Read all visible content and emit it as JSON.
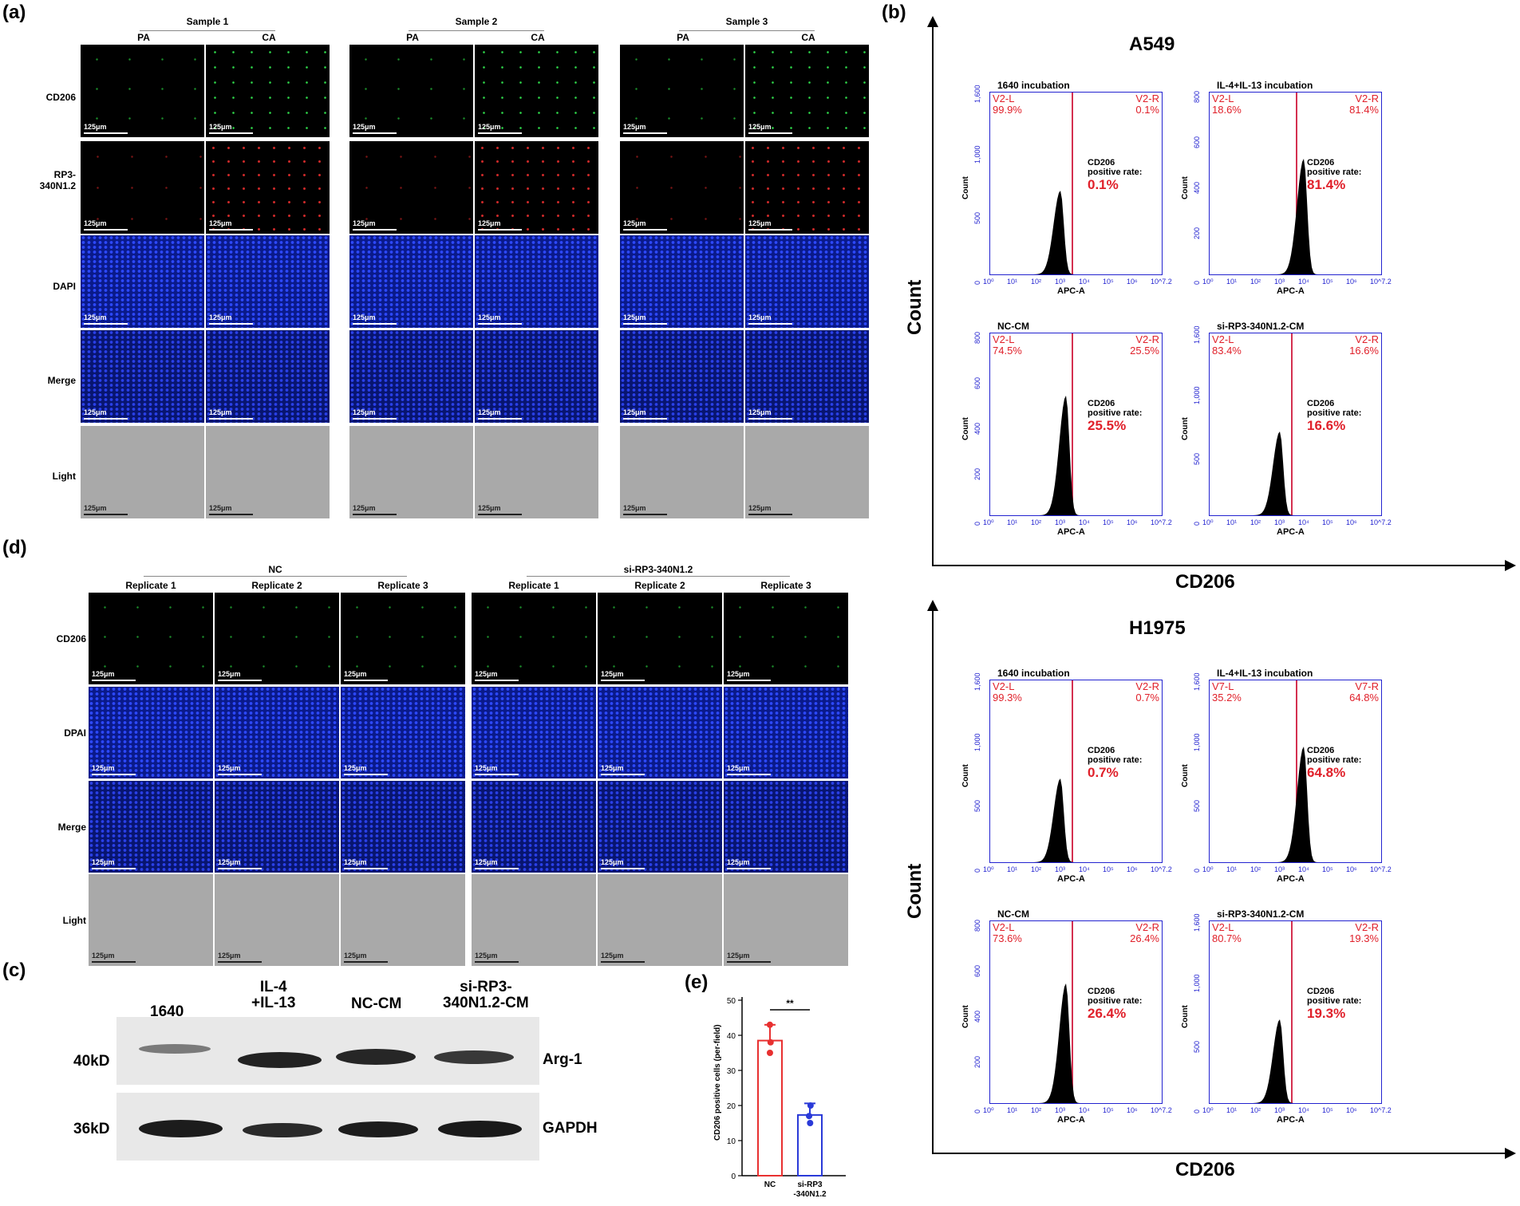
{
  "panels": {
    "a": "(a)",
    "b": "(b)",
    "c": "(c)",
    "d": "(d)",
    "e": "(e)"
  },
  "panel_a": {
    "samples": [
      "Sample 1",
      "Sample 2",
      "Sample 3"
    ],
    "cols": [
      "PA",
      "CA"
    ],
    "rows": [
      "CD206",
      "RP3-\n340N1.2",
      "DAPI",
      "Merge",
      "Light"
    ],
    "scale": "125μm"
  },
  "panel_d": {
    "groups": [
      "NC",
      "si-RP3-340N1.2"
    ],
    "replicates": [
      "Replicate 1",
      "Replicate 2",
      "Replicate 3"
    ],
    "rows": [
      "CD206",
      "DPAI",
      "Merge",
      "Light"
    ],
    "scale": "125μm"
  },
  "panel_b": {
    "axis_y": "Count",
    "axis_x": "CD206",
    "blocks": [
      {
        "cell": "A549",
        "plots": [
          {
            "title": "1640 incubation",
            "l": "V2-L",
            "lp": "99.9%",
            "r": "V2-R",
            "rp": "0.1%",
            "rate": "0.1%",
            "yt": [
              "1,600",
              "1,000",
              "500",
              "0"
            ]
          },
          {
            "title": "IL-4+IL-13 incubation",
            "l": "V2-L",
            "lp": "18.6%",
            "r": "V2-R",
            "rp": "81.4%",
            "rate": "81.4%",
            "yt": [
              "800",
              "600",
              "400",
              "200",
              "0"
            ]
          },
          {
            "title": "NC-CM",
            "l": "V2-L",
            "lp": "74.5%",
            "r": "V2-R",
            "rp": "25.5%",
            "rate": "25.5%",
            "yt": [
              "800",
              "600",
              "400",
              "200",
              "0"
            ]
          },
          {
            "title": "si-RP3-340N1.2-CM",
            "l": "V2-L",
            "lp": "83.4%",
            "r": "V2-R",
            "rp": "16.6%",
            "rate": "16.6%",
            "yt": [
              "1,600",
              "1,000",
              "500",
              "0"
            ]
          }
        ]
      },
      {
        "cell": "H1975",
        "plots": [
          {
            "title": "1640 incubation",
            "l": "V2-L",
            "lp": "99.3%",
            "r": "V2-R",
            "rp": "0.7%",
            "rate": "0.7%",
            "yt": [
              "1,600",
              "1,000",
              "500",
              "0"
            ]
          },
          {
            "title": "IL-4+IL-13 incubation",
            "l": "V7-L",
            "lp": "35.2%",
            "r": "V7-R",
            "rp": "64.8%",
            "rate": "64.8%",
            "yt": [
              "1,600",
              "1,000",
              "500",
              "0"
            ]
          },
          {
            "title": "NC-CM",
            "l": "V2-L",
            "lp": "73.6%",
            "r": "V2-R",
            "rp": "26.4%",
            "rate": "26.4%",
            "yt": [
              "800",
              "600",
              "400",
              "200",
              "0"
            ]
          },
          {
            "title": "si-RP3-340N1.2-CM",
            "l": "V2-L",
            "lp": "80.7%",
            "r": "V2-R",
            "rp": "19.3%",
            "rate": "19.3%",
            "yt": [
              "1,600",
              "1,000",
              "500",
              "0"
            ]
          }
        ]
      }
    ],
    "cd206_label": "CD206",
    "positive_rate": "positive rate:",
    "count_label": "Count",
    "apc_label": "APC-A",
    "x_ticks": [
      "10⁰",
      "10¹",
      "10²",
      "10³",
      "10⁴",
      "10⁵",
      "10⁶",
      "10^7.2"
    ]
  },
  "panel_c": {
    "lanes": [
      "1640",
      "IL-4\n+IL-13",
      "NC-CM",
      "si-RP3-\n340N1.2-CM"
    ],
    "markers": [
      "40kD",
      "36kD"
    ],
    "proteins": [
      "Arg-1",
      "GAPDH"
    ]
  },
  "chart_data": {
    "type": "bar",
    "title": "",
    "categories": [
      "NC",
      "si-RP3\n-340N1.2"
    ],
    "values": [
      38.5,
      17.3
    ],
    "errors": [
      4.5,
      3.3
    ],
    "points": [
      [
        43,
        38,
        35
      ],
      [
        20,
        17,
        15
      ]
    ],
    "ylabel": "CD206 positive cells (per-field)",
    "xlabel": "",
    "ylim": [
      0,
      50
    ],
    "yticks": [
      "0",
      "10",
      "20",
      "30",
      "40",
      "50"
    ],
    "significance": "**",
    "colors": [
      "#e83030",
      "#2a3ad8"
    ]
  }
}
